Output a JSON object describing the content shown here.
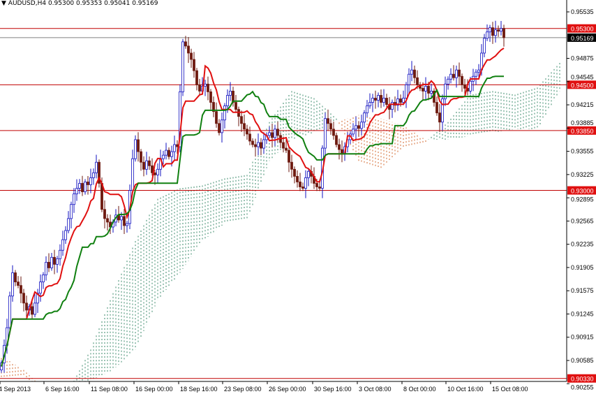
{
  "header": {
    "menu_icon": "triangle-down-icon",
    "symbol": "AUDUSD,H4",
    "open": "0.95300",
    "high": "0.95353",
    "low": "0.95041",
    "close": "0.95169"
  },
  "chart_data": {
    "type": "candlestick",
    "symbol": "AUDUSD",
    "timeframe": "H4",
    "indicator": "Ichimoku Kinko Hyo",
    "ylim": [
      0.902,
      0.956
    ],
    "grid": false,
    "colors": {
      "bull_candle": "#1010c0",
      "bear_candle": "#6e1a10",
      "tenkan": "#e01010",
      "kijun": "#108010",
      "cloud_bull": "#3a8a6a",
      "cloud_bear": "#d2642a",
      "level_line": "#c00000",
      "bid_line": "#808080"
    },
    "close": [
      0.9055,
      0.908,
      0.9105,
      0.915,
      0.9183,
      0.917,
      0.9165,
      0.9154,
      0.914,
      0.913,
      0.9135,
      0.9124,
      0.914,
      0.9154,
      0.917,
      0.918,
      0.9198,
      0.919,
      0.9205,
      0.9195,
      0.9203,
      0.9215,
      0.923,
      0.9243,
      0.926,
      0.928,
      0.9295,
      0.9303,
      0.931,
      0.9298,
      0.9312,
      0.9308,
      0.9318,
      0.9325,
      0.934,
      0.931,
      0.9273,
      0.926,
      0.9255,
      0.9248,
      0.9255,
      0.9265,
      0.9258,
      0.9263,
      0.925,
      0.9253,
      0.93,
      0.9345,
      0.9372,
      0.9355,
      0.934,
      0.933,
      0.9342,
      0.9335,
      0.9325,
      0.9322,
      0.933,
      0.9345,
      0.935,
      0.9357,
      0.9348,
      0.9355,
      0.9365,
      0.9362,
      0.944,
      0.9511,
      0.9505,
      0.9495,
      0.9486,
      0.947,
      0.945,
      0.9441,
      0.9448,
      0.9451,
      0.944,
      0.9425,
      0.9412,
      0.9395,
      0.9382,
      0.94,
      0.942,
      0.9435,
      0.9441,
      0.9425,
      0.9415,
      0.9405,
      0.9395,
      0.9387,
      0.938,
      0.937,
      0.9365,
      0.9362,
      0.9368,
      0.936,
      0.9372,
      0.9378,
      0.9382,
      0.9375,
      0.9387,
      0.9378,
      0.9368,
      0.936,
      0.9357,
      0.934,
      0.933,
      0.932,
      0.9312,
      0.9305,
      0.9303,
      0.9318,
      0.9327,
      0.932,
      0.931,
      0.9305,
      0.9303,
      0.936,
      0.9402,
      0.9395,
      0.9387,
      0.9378,
      0.9365,
      0.9358,
      0.9352,
      0.9362,
      0.9372,
      0.938,
      0.9387,
      0.9392,
      0.9388,
      0.9397,
      0.941,
      0.942,
      0.9425,
      0.9431,
      0.9428,
      0.9435,
      0.9425,
      0.9431,
      0.9422,
      0.9415,
      0.9425,
      0.9421,
      0.943,
      0.9425,
      0.9431,
      0.945,
      0.9465,
      0.9471,
      0.946,
      0.945,
      0.9445,
      0.9441,
      0.9448,
      0.9438,
      0.9441,
      0.9425,
      0.941,
      0.9397,
      0.943,
      0.9451,
      0.9458,
      0.9465,
      0.946,
      0.9471,
      0.9462,
      0.945,
      0.9445,
      0.9441,
      0.9455,
      0.9462,
      0.9468,
      0.9471,
      0.9495,
      0.9516,
      0.9525,
      0.9531,
      0.952,
      0.9528,
      0.9526,
      0.953,
      0.95169
    ],
    "last_bar": {
      "open": 0.953,
      "high": 0.95353,
      "low": 0.95041,
      "close": 0.95169
    },
    "senkou_span_a_every_8_bars": [
      0.9035,
      0.9038,
      0.901,
      0.9015,
      0.9074,
      0.9154,
      0.9228,
      0.9288,
      0.9303,
      0.9307,
      0.9317,
      0.9322,
      0.9397,
      0.9441,
      0.9431,
      0.9402,
      0.9342,
      0.9332,
      0.9362,
      0.9369,
      0.9397,
      0.9436,
      0.9441,
      0.9436,
      0.9446,
      0.9481
    ],
    "senkou_span_b_every_8_bars": [
      0.9065,
      0.9045,
      0.9015,
      0.9005,
      0.903,
      0.9045,
      0.9074,
      0.9144,
      0.9183,
      0.9228,
      0.9253,
      0.9258,
      0.9342,
      0.9372,
      0.9382,
      0.9397,
      0.9407,
      0.9402,
      0.9392,
      0.9372,
      0.9372,
      0.9377,
      0.9382,
      0.9387,
      0.9387,
      0.9441
    ],
    "levels": [
      "0.95300",
      "0.94500",
      "0.93850",
      "0.93000",
      "0.90330"
    ],
    "bid": "0.95169",
    "y_ticks": [
      "0.95535",
      "0.94875",
      "0.94545",
      "0.94215",
      "0.93885",
      "0.93555",
      "0.93225",
      "0.92895",
      "0.92565",
      "0.92235",
      "0.91905",
      "0.91575",
      "0.91245",
      "0.90915",
      "0.90585",
      "0.90255"
    ],
    "x_ticks": [
      "4 Sep 2013",
      "6 Sep 16:00",
      "11 Sep 08:00",
      "16 Sep 00:00",
      "18 Sep 16:00",
      "23 Sep 08:00",
      "26 Sep 00:00",
      "30 Sep 16:00",
      "3 Oct 08:00",
      "8 Oct 00:00",
      "10 Oct 16:00",
      "15 Oct 08:00"
    ]
  }
}
